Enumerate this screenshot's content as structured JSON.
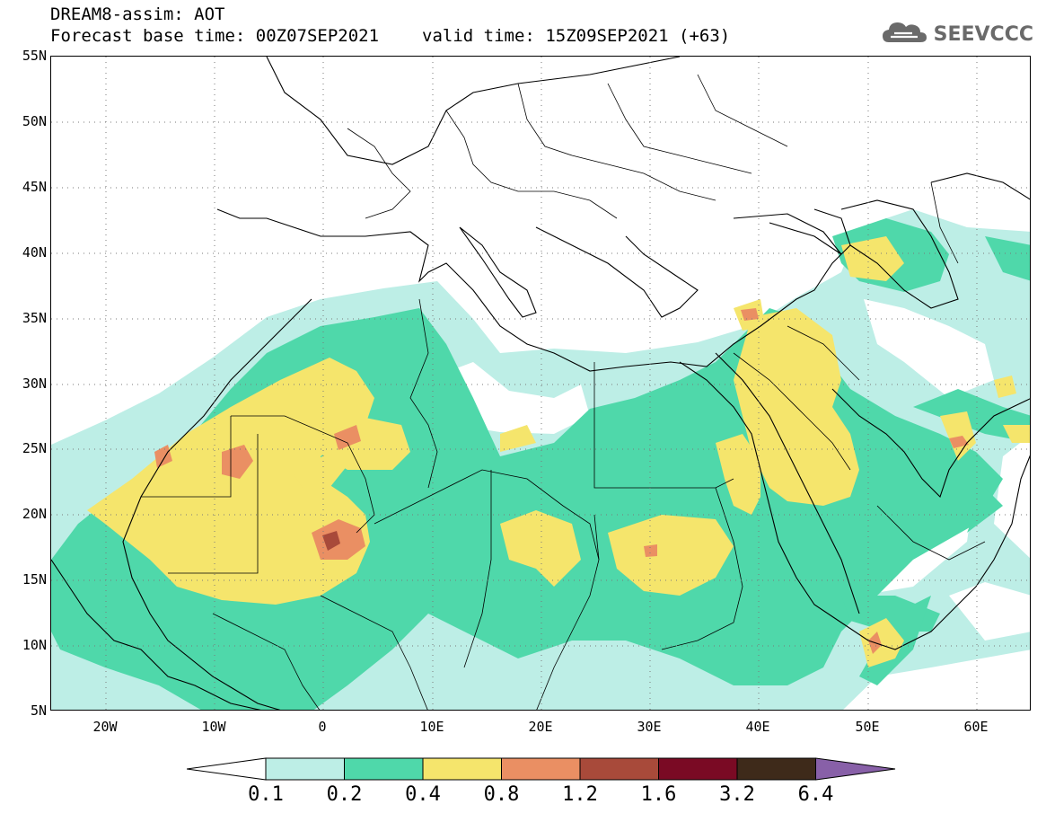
{
  "title": {
    "line1": "DREAM8-assim: AOT",
    "base_time": "Forecast base time: 00Z07SEP2021",
    "valid_time": "valid time: 15Z09SEP2021 (+63)"
  },
  "logo": {
    "text": "SEEVCCC",
    "icon": "cloud-icon"
  },
  "map": {
    "lon_range": [
      -25,
      65
    ],
    "lat_range": [
      5,
      55
    ],
    "grid": "dotted",
    "lat_labels": [
      "55N",
      "50N",
      "45N",
      "40N",
      "35N",
      "30N",
      "25N",
      "20N",
      "15N",
      "10N",
      "5N"
    ],
    "lon_labels": [
      "20W",
      "10W",
      "0",
      "10E",
      "20E",
      "30E",
      "40E",
      "50E",
      "60E"
    ]
  },
  "colorbar": {
    "levels": [
      "0.1",
      "0.2",
      "0.4",
      "0.8",
      "1.2",
      "1.6",
      "3.2",
      "6.4"
    ],
    "colors": [
      "#ffffff",
      "#bdeee6",
      "#4fd8aa",
      "#f5e56c",
      "#ea8f63",
      "#a84a3a",
      "#7a0a24",
      "#3e2a1a",
      "#8860a8"
    ]
  }
}
